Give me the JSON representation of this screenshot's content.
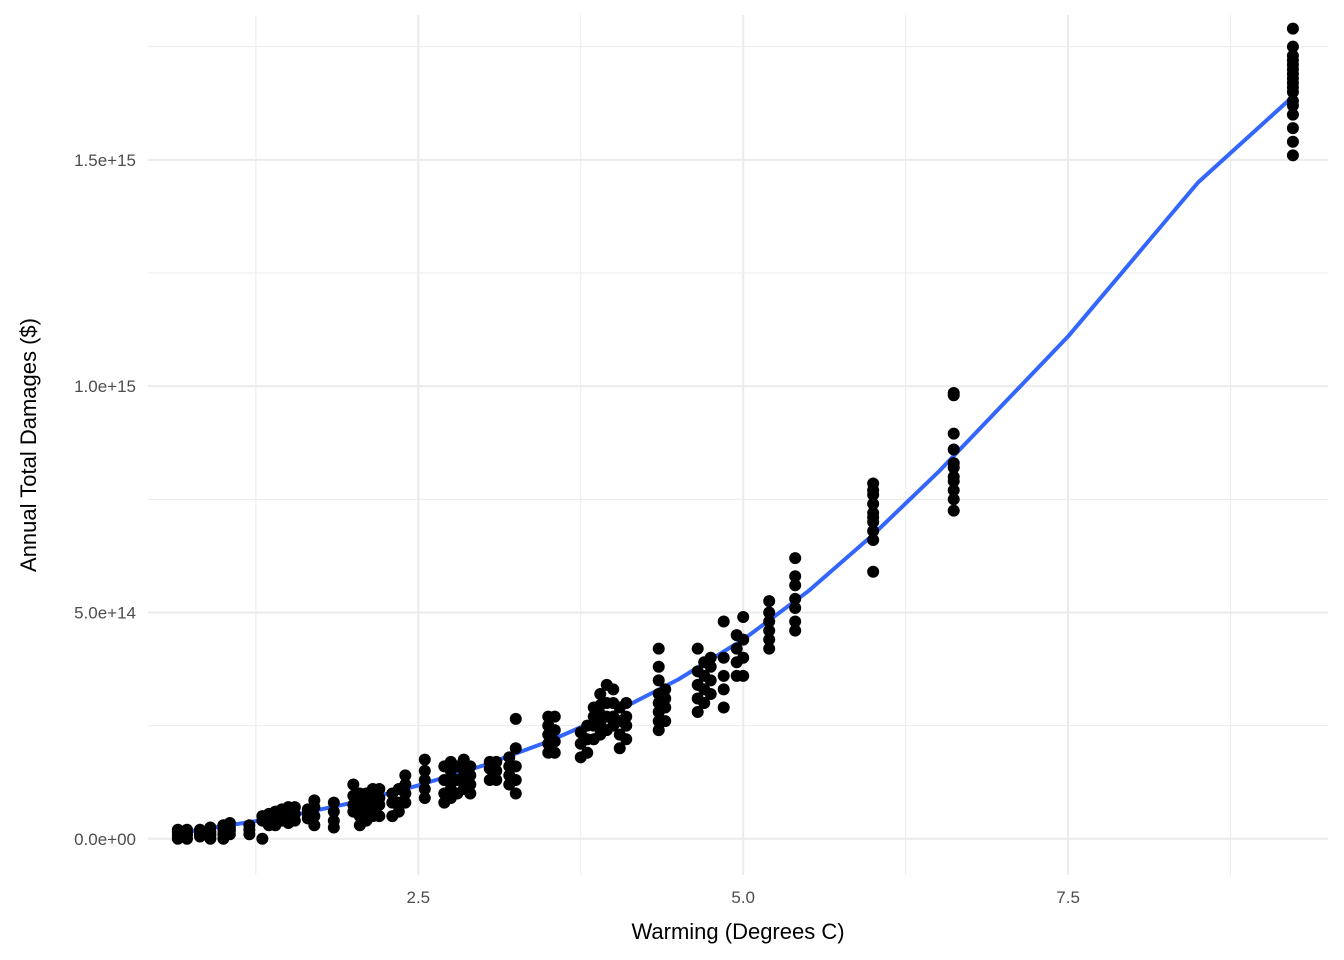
{
  "chart_data": {
    "type": "scatter",
    "title": "",
    "xlabel": "Warming (Degrees C)",
    "ylabel": "Annual Total Damages ($)",
    "xlim": [
      0.42,
      9.5
    ],
    "ylim": [
      -80000000000000.0,
      1820000000000000.0
    ],
    "x_ticks": [
      2.5,
      5.0,
      7.5
    ],
    "x_tick_labels": [
      "2.5",
      "5.0",
      "7.5"
    ],
    "x_minor_ticks": [
      1.25,
      3.75,
      6.25,
      8.75
    ],
    "y_ticks": [
      0,
      500000000000000.0,
      1000000000000000.0,
      1500000000000000.0
    ],
    "y_tick_labels": [
      "0.0e+00",
      "5.0e+14",
      "1.0e+15",
      "1.5e+15"
    ],
    "y_minor_ticks": [
      250000000000000.0,
      750000000000000.0,
      1250000000000000.0,
      1750000000000000.0
    ],
    "grid": true,
    "colors": {
      "points": "#000000",
      "fit_line": "#3366ff",
      "grid": "#ebebeb"
    },
    "fit_line": {
      "name": "fitted curve",
      "x": [
        0.65,
        1.0,
        1.5,
        2.0,
        2.5,
        3.0,
        3.5,
        4.0,
        4.5,
        5.0,
        5.5,
        6.0,
        6.5,
        7.0,
        7.5,
        8.0,
        8.5,
        9.23
      ],
      "y": [
        12000000000000.0,
        28000000000000.0,
        50000000000000.0,
        80000000000000.0,
        118000000000000.0,
        162000000000000.0,
        215000000000000.0,
        278000000000000.0,
        352000000000000.0,
        440000000000000.0,
        547000000000000.0,
        672000000000000.0,
        810000000000000.0,
        960000000000000.0,
        1110000000000000.0,
        1280000000000000.0,
        1450000000000000.0,
        1640000000000000.0
      ]
    },
    "points": {
      "x": [
        0.65,
        0.65,
        0.65,
        0.65,
        0.65,
        0.72,
        0.72,
        0.72,
        0.72,
        0.82,
        0.82,
        0.82,
        0.9,
        0.9,
        0.9,
        0.9,
        1.0,
        1.0,
        1.0,
        1.0,
        1.05,
        1.05,
        1.05,
        1.05,
        1.2,
        1.2,
        1.2,
        1.3,
        1.3,
        1.3,
        1.35,
        1.35,
        1.35,
        1.4,
        1.4,
        1.4,
        1.4,
        1.45,
        1.45,
        1.45,
        1.5,
        1.5,
        1.5,
        1.55,
        1.55,
        1.55,
        1.65,
        1.65,
        1.65,
        1.7,
        1.7,
        1.7,
        1.7,
        1.85,
        1.85,
        1.85,
        1.85,
        2.05,
        2.05,
        2.05,
        2.05,
        2.05,
        2.0,
        2.0,
        2.0,
        2.0,
        2.1,
        2.1,
        2.1,
        2.1,
        2.15,
        2.15,
        2.15,
        2.15,
        2.2,
        2.2,
        2.2,
        2.2,
        2.3,
        2.3,
        2.3,
        2.35,
        2.35,
        2.35,
        2.4,
        2.4,
        2.4,
        2.4,
        2.55,
        2.55,
        2.55,
        2.55,
        2.55,
        2.7,
        2.7,
        2.7,
        2.7,
        2.75,
        2.75,
        2.75,
        2.75,
        2.75,
        2.8,
        2.8,
        2.8,
        2.85,
        2.85,
        2.85,
        2.85,
        2.9,
        2.9,
        2.9,
        2.9,
        3.05,
        3.05,
        3.05,
        3.1,
        3.1,
        3.1,
        3.2,
        3.2,
        3.2,
        3.2,
        3.25,
        3.25,
        3.25,
        3.25,
        3.25,
        3.5,
        3.5,
        3.5,
        3.5,
        3.5,
        3.55,
        3.55,
        3.55,
        3.55,
        3.75,
        3.75,
        3.75,
        3.8,
        3.8,
        3.8,
        3.85,
        3.85,
        3.85,
        3.85,
        3.9,
        3.9,
        3.9,
        3.9,
        3.9,
        3.95,
        3.95,
        3.95,
        3.95,
        4.0,
        4.0,
        4.0,
        4.0,
        4.05,
        4.05,
        4.05,
        4.05,
        4.1,
        4.1,
        4.1,
        4.1,
        4.35,
        4.35,
        4.35,
        4.35,
        4.35,
        4.35,
        4.35,
        4.35,
        4.4,
        4.4,
        4.4,
        4.4,
        4.65,
        4.65,
        4.65,
        4.65,
        4.65,
        4.7,
        4.7,
        4.7,
        4.7,
        4.75,
        4.75,
        4.75,
        4.75,
        4.85,
        4.85,
        4.85,
        4.85,
        4.85,
        4.95,
        4.95,
        4.95,
        4.95,
        5.0,
        5.0,
        5.0,
        5.0,
        5.2,
        5.2,
        5.2,
        5.2,
        5.2,
        5.2,
        5.4,
        5.4,
        5.4,
        5.4,
        5.4,
        5.4,
        5.4,
        6.0,
        6.0,
        6.0,
        6.0,
        6.0,
        6.0,
        6.0,
        6.0,
        6.0,
        6.0,
        6.62,
        6.62,
        6.62,
        6.62,
        6.62,
        6.62,
        6.62,
        6.62,
        6.62,
        6.62,
        6.62,
        9.23,
        9.23,
        9.23,
        9.23,
        9.23,
        9.23,
        9.23,
        9.23,
        9.23,
        9.23,
        9.23,
        9.23,
        9.23,
        9.23,
        9.23,
        9.23,
        9.23
      ],
      "y": [
        0,
        5000000000000.0,
        10000000000000.0,
        15000000000000.0,
        20000000000000.0,
        0,
        8000000000000.0,
        15000000000000.0,
        20000000000000.0,
        5000000000000.0,
        12000000000000.0,
        20000000000000.0,
        0,
        8000000000000.0,
        15000000000000.0,
        25000000000000.0,
        0,
        10000000000000.0,
        20000000000000.0,
        30000000000000.0,
        10000000000000.0,
        18000000000000.0,
        25000000000000.0,
        35000000000000.0,
        10000000000000.0,
        20000000000000.0,
        30000000000000.0,
        0,
        40000000000000.0,
        50000000000000.0,
        30000000000000.0,
        45000000000000.0,
        55000000000000.0,
        30000000000000.0,
        40000000000000.0,
        50000000000000.0,
        60000000000000.0,
        40000000000000.0,
        50000000000000.0,
        65000000000000.0,
        35000000000000.0,
        50000000000000.0,
        70000000000000.0,
        40000000000000.0,
        55000000000000.0,
        70000000000000.0,
        45000000000000.0,
        55000000000000.0,
        65000000000000.0,
        30000000000000.0,
        50000000000000.0,
        70000000000000.0,
        85000000000000.0,
        25000000000000.0,
        40000000000000.0,
        60000000000000.0,
        80000000000000.0,
        30000000000000.0,
        50000000000000.0,
        70000000000000.0,
        90000000000000.0,
        100000000000000.0,
        60000000000000.0,
        75000000000000.0,
        95000000000000.0,
        120000000000000.0,
        40000000000000.0,
        60000000000000.0,
        80000000000000.0,
        100000000000000.0,
        50000000000000.0,
        70000000000000.0,
        90000000000000.0,
        110000000000000.0,
        50000000000000.0,
        75000000000000.0,
        90000000000000.0,
        110000000000000.0,
        50000000000000.0,
        80000000000000.0,
        100000000000000.0,
        60000000000000.0,
        80000000000000.0,
        110000000000000.0,
        80000000000000.0,
        100000000000000.0,
        120000000000000.0,
        140000000000000.0,
        90000000000000.0,
        110000000000000.0,
        130000000000000.0,
        150000000000000.0,
        175000000000000.0,
        80000000000000.0,
        100000000000000.0,
        130000000000000.0,
        160000000000000.0,
        90000000000000.0,
        110000000000000.0,
        130000000000000.0,
        150000000000000.0,
        170000000000000.0,
        100000000000000.0,
        130000000000000.0,
        160000000000000.0,
        110000000000000.0,
        130000000000000.0,
        150000000000000.0,
        175000000000000.0,
        100000000000000.0,
        120000000000000.0,
        140000000000000.0,
        160000000000000.0,
        130000000000000.0,
        155000000000000.0,
        170000000000000.0,
        130000000000000.0,
        150000000000000.0,
        170000000000000.0,
        120000000000000.0,
        140000000000000.0,
        160000000000000.0,
        180000000000000.0,
        100000000000000.0,
        130000000000000.0,
        160000000000000.0,
        200000000000000.0,
        265000000000000.0,
        190000000000000.0,
        210000000000000.0,
        230000000000000.0,
        250000000000000.0,
        270000000000000.0,
        190000000000000.0,
        215000000000000.0,
        240000000000000.0,
        270000000000000.0,
        180000000000000.0,
        210000000000000.0,
        235000000000000.0,
        190000000000000.0,
        220000000000000.0,
        250000000000000.0,
        220000000000000.0,
        250000000000000.0,
        270000000000000.0,
        290000000000000.0,
        230000000000000.0,
        255000000000000.0,
        275000000000000.0,
        295000000000000.0,
        320000000000000.0,
        240000000000000.0,
        270000000000000.0,
        300000000000000.0,
        340000000000000.0,
        250000000000000.0,
        270000000000000.0,
        300000000000000.0,
        330000000000000.0,
        200000000000000.0,
        230000000000000.0,
        260000000000000.0,
        290000000000000.0,
        220000000000000.0,
        250000000000000.0,
        270000000000000.0,
        300000000000000.0,
        240000000000000.0,
        260000000000000.0,
        280000000000000.0,
        300000000000000.0,
        320000000000000.0,
        350000000000000.0,
        380000000000000.0,
        420000000000000.0,
        260000000000000.0,
        290000000000000.0,
        310000000000000.0,
        330000000000000.0,
        280000000000000.0,
        310000000000000.0,
        340000000000000.0,
        370000000000000.0,
        420000000000000.0,
        300000000000000.0,
        330000000000000.0,
        360000000000000.0,
        390000000000000.0,
        320000000000000.0,
        350000000000000.0,
        380000000000000.0,
        400000000000000.0,
        290000000000000.0,
        330000000000000.0,
        360000000000000.0,
        400000000000000.0,
        480000000000000.0,
        360000000000000.0,
        390000000000000.0,
        420000000000000.0,
        450000000000000.0,
        360000000000000.0,
        400000000000000.0,
        440000000000000.0,
        490000000000000.0,
        420000000000000.0,
        440000000000000.0,
        460000000000000.0,
        480000000000000.0,
        500000000000000.0,
        525000000000000.0,
        460000000000000.0,
        480000000000000.0,
        510000000000000.0,
        530000000000000.0,
        560000000000000.0,
        580000000000000.0,
        620000000000000.0,
        590000000000000.0,
        660000000000000.0,
        680000000000000.0,
        700000000000000.0,
        710000000000000.0,
        720000000000000.0,
        740000000000000.0,
        760000000000000.0,
        770000000000000.0,
        785000000000000.0,
        725000000000000.0,
        750000000000000.0,
        770000000000000.0,
        790000000000000.0,
        800000000000000.0,
        820000000000000.0,
        830000000000000.0,
        860000000000000.0,
        895000000000000.0,
        980000000000000.0,
        985000000000000.0,
        1510000000000000.0,
        1540000000000000.0,
        1570000000000000.0,
        1600000000000000.0,
        1620000000000000.0,
        1630000000000000.0,
        1650000000000000.0,
        1660000000000000.0,
        1670000000000000.0,
        1680000000000000.0,
        1690000000000000.0,
        1700000000000000.0,
        1710000000000000.0,
        1720000000000000.0,
        1730000000000000.0,
        1750000000000000.0,
        1790000000000000.0
      ]
    }
  }
}
